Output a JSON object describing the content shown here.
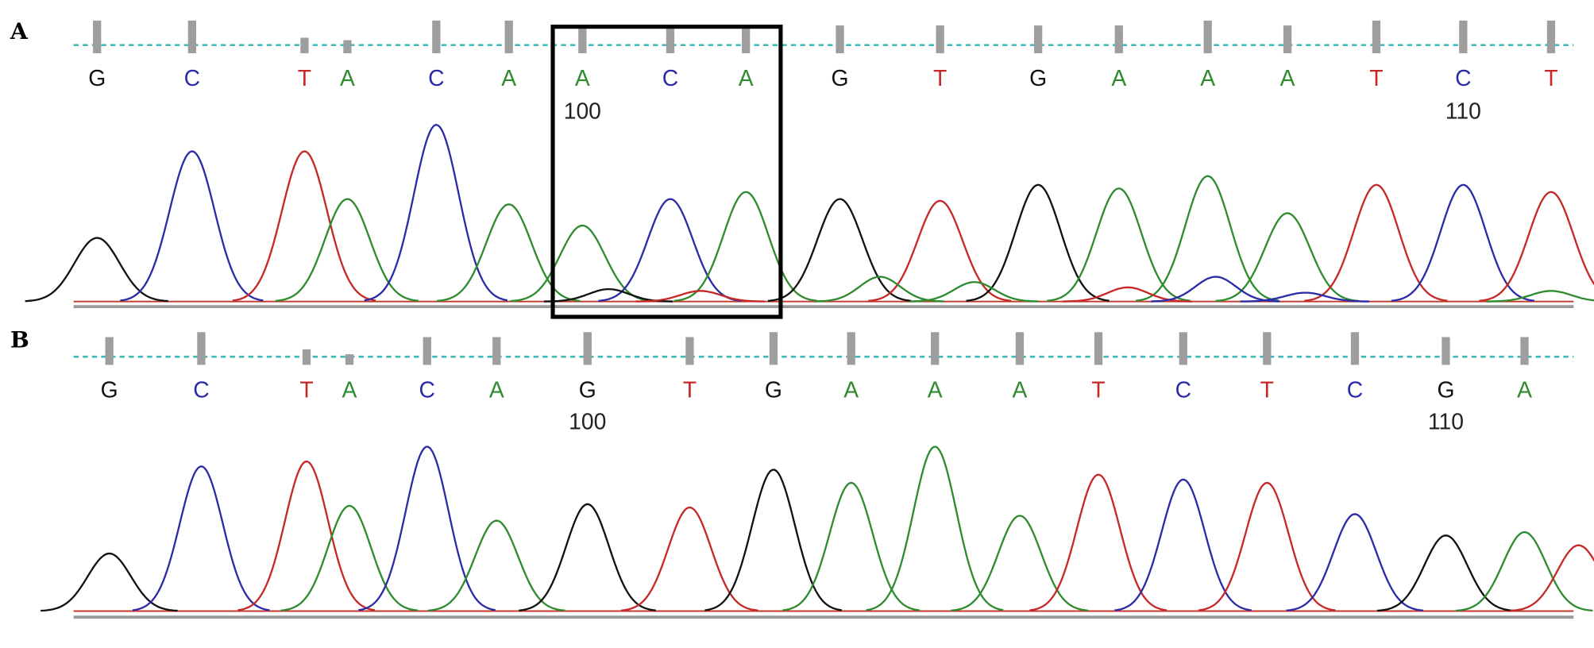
{
  "chart_data": [
    {
      "type": "line",
      "panel_label": "A",
      "channel_colors": {
        "A": "#2e8b2e",
        "C": "#2b2ba8",
        "G": "#111111",
        "T": "#c62828"
      },
      "bases": [
        "G",
        "C",
        "T",
        "A",
        "C",
        "A",
        "A",
        "C",
        "A",
        "G",
        "T",
        "G",
        "A",
        "A",
        "A",
        "T",
        "C",
        "T"
      ],
      "quality": [
        1,
        1,
        0.3,
        0.2,
        1,
        1,
        0.8,
        0.8,
        0.8,
        0.8,
        0.8,
        0.8,
        0.8,
        1,
        0.8,
        1,
        1,
        1
      ],
      "position_labels": [
        {
          "base_index": 6,
          "text": "100"
        },
        {
          "base_index": 16,
          "text": "110"
        }
      ],
      "peaks": [
        {
          "at": 0,
          "base": "G",
          "height": 0.36
        },
        {
          "at": 1,
          "base": "C",
          "height": 0.85
        },
        {
          "at": 2,
          "base": "T",
          "height": 0.85
        },
        {
          "at": 3,
          "base": "A",
          "height": 0.58
        },
        {
          "at": 4,
          "base": "C",
          "height": 1.0
        },
        {
          "at": 5,
          "base": "A",
          "height": 0.55
        },
        {
          "at": 6,
          "base": "A",
          "height": 0.43
        },
        {
          "at": 7,
          "base": "C",
          "height": 0.58
        },
        {
          "at": 8,
          "base": "A",
          "height": 0.62
        },
        {
          "at": 9,
          "base": "G",
          "height": 0.58
        },
        {
          "at": 10,
          "base": "T",
          "height": 0.57
        },
        {
          "at": 11,
          "base": "G",
          "height": 0.66
        },
        {
          "at": 12,
          "base": "A",
          "height": 0.64
        },
        {
          "at": 13,
          "base": "A",
          "height": 0.71
        },
        {
          "at": 14,
          "base": "A",
          "height": 0.5
        },
        {
          "at": 15,
          "base": "T",
          "height": 0.66
        },
        {
          "at": 16,
          "base": "C",
          "height": 0.66
        },
        {
          "at": 17,
          "base": "T",
          "height": 0.62
        },
        {
          "at": 6.3,
          "base": "G",
          "height": 0.07
        },
        {
          "at": 7.4,
          "base": "T",
          "height": 0.06
        },
        {
          "at": 9.4,
          "base": "A",
          "height": 0.14
        },
        {
          "at": 10.35,
          "base": "A",
          "height": 0.11
        },
        {
          "at": 12.1,
          "base": "T",
          "height": 0.08
        },
        {
          "at": 13.1,
          "base": "C",
          "height": 0.14
        },
        {
          "at": 14.2,
          "base": "C",
          "height": 0.05
        },
        {
          "at": 17.3,
          "base": "A",
          "height": 0.06
        }
      ],
      "highlight_box": {
        "from_base_index": 6,
        "to_base_index": 8
      }
    },
    {
      "type": "line",
      "panel_label": "B",
      "channel_colors": {
        "A": "#2e8b2e",
        "C": "#2b2ba8",
        "G": "#111111",
        "T": "#c62828"
      },
      "bases": [
        "G",
        "C",
        "T",
        "A",
        "C",
        "A",
        "G",
        "T",
        "G",
        "A",
        "A",
        "A",
        "T",
        "C",
        "T",
        "C",
        "G",
        "A"
      ],
      "quality": [
        0.8,
        1,
        0.3,
        0.1,
        0.8,
        0.8,
        1,
        0.8,
        1,
        1,
        1,
        1,
        1,
        1,
        1,
        1,
        0.8,
        0.8
      ],
      "position_labels": [
        {
          "base_index": 6,
          "text": "100"
        },
        {
          "base_index": 16,
          "text": "110"
        }
      ],
      "peaks": [
        {
          "at": 0,
          "base": "G",
          "height": 0.35
        },
        {
          "at": 1,
          "base": "C",
          "height": 0.88
        },
        {
          "at": 2,
          "base": "T",
          "height": 0.91
        },
        {
          "at": 3,
          "base": "A",
          "height": 0.64
        },
        {
          "at": 4,
          "base": "C",
          "height": 1.0
        },
        {
          "at": 5,
          "base": "A",
          "height": 0.55
        },
        {
          "at": 6,
          "base": "G",
          "height": 0.65
        },
        {
          "at": 7,
          "base": "T",
          "height": 0.63
        },
        {
          "at": 8,
          "base": "G",
          "height": 0.86
        },
        {
          "at": 9,
          "base": "A",
          "height": 0.78
        },
        {
          "at": 10,
          "base": "A",
          "height": 1.0
        },
        {
          "at": 11,
          "base": "A",
          "height": 0.58
        },
        {
          "at": 12,
          "base": "T",
          "height": 0.83
        },
        {
          "at": 13,
          "base": "C",
          "height": 0.8
        },
        {
          "at": 14,
          "base": "T",
          "height": 0.78
        },
        {
          "at": 15,
          "base": "C",
          "height": 0.59
        },
        {
          "at": 16,
          "base": "G",
          "height": 0.46
        },
        {
          "at": 17,
          "base": "A",
          "height": 0.48
        },
        {
          "at": 18,
          "base": "T",
          "height": 0.4
        }
      ]
    }
  ]
}
